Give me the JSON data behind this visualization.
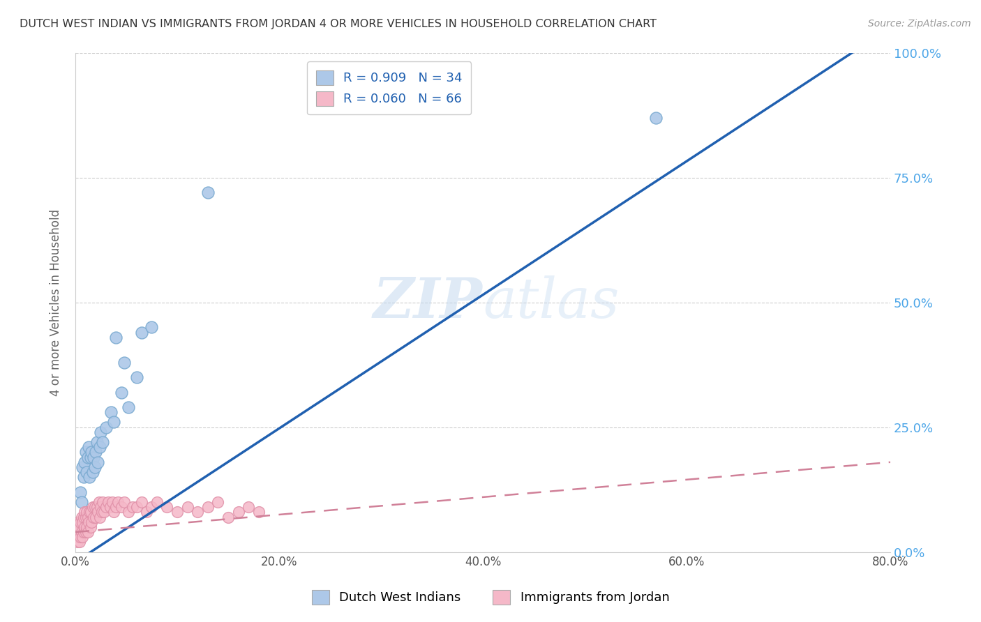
{
  "title": "DUTCH WEST INDIAN VS IMMIGRANTS FROM JORDAN 4 OR MORE VEHICLES IN HOUSEHOLD CORRELATION CHART",
  "source": "Source: ZipAtlas.com",
  "ylabel": "4 or more Vehicles in Household",
  "xlim": [
    0.0,
    0.8
  ],
  "ylim": [
    0.0,
    1.0
  ],
  "xtick_labels": [
    "0.0%",
    "",
    "",
    "",
    "20.0%",
    "",
    "",
    "",
    "40.0%",
    "",
    "",
    "",
    "60.0%",
    "",
    "",
    "",
    "80.0%"
  ],
  "xtick_vals": [
    0.0,
    0.05,
    0.1,
    0.15,
    0.2,
    0.25,
    0.3,
    0.35,
    0.4,
    0.45,
    0.5,
    0.55,
    0.6,
    0.65,
    0.7,
    0.75,
    0.8
  ],
  "xtick_major_labels": [
    "0.0%",
    "20.0%",
    "40.0%",
    "60.0%",
    "80.0%"
  ],
  "xtick_major_vals": [
    0.0,
    0.2,
    0.4,
    0.6,
    0.8
  ],
  "ytick_vals": [
    0.0,
    0.25,
    0.5,
    0.75,
    1.0
  ],
  "ytick_labels": [
    "0.0%",
    "25.0%",
    "50.0%",
    "75.0%",
    "100.0%"
  ],
  "legend1_label": "R = 0.909   N = 34",
  "legend2_label": "R = 0.060   N = 66",
  "legend1_color": "#adc8e8",
  "legend2_color": "#f5b8c8",
  "line1_color": "#2060b0",
  "line2_color": "#d08098",
  "scatter1_color": "#adc8e8",
  "scatter2_color": "#f5b8c8",
  "scatter1_edge": "#7aaad0",
  "scatter2_edge": "#e090a8",
  "watermark_color": "#d0e4f5",
  "background_color": "#ffffff",
  "grid_color": "#cccccc",
  "right_tick_color": "#4da6e8",
  "title_color": "#333333",
  "source_color": "#999999",
  "ylabel_color": "#666666",
  "legend_text_color": "#2060b0",
  "dutch_x": [
    0.003,
    0.005,
    0.006,
    0.007,
    0.008,
    0.009,
    0.01,
    0.011,
    0.012,
    0.013,
    0.014,
    0.015,
    0.016,
    0.017,
    0.018,
    0.019,
    0.02,
    0.021,
    0.022,
    0.024,
    0.025,
    0.027,
    0.03,
    0.035,
    0.038,
    0.04,
    0.045,
    0.048,
    0.052,
    0.06,
    0.065,
    0.075,
    0.13,
    0.57
  ],
  "dutch_y": [
    0.05,
    0.12,
    0.1,
    0.17,
    0.15,
    0.18,
    0.2,
    0.16,
    0.19,
    0.21,
    0.15,
    0.19,
    0.2,
    0.16,
    0.19,
    0.17,
    0.2,
    0.22,
    0.18,
    0.21,
    0.24,
    0.22,
    0.25,
    0.28,
    0.26,
    0.43,
    0.32,
    0.38,
    0.29,
    0.35,
    0.44,
    0.45,
    0.72,
    0.87
  ],
  "jordan_x": [
    0.001,
    0.002,
    0.002,
    0.003,
    0.003,
    0.004,
    0.004,
    0.005,
    0.005,
    0.006,
    0.006,
    0.007,
    0.007,
    0.008,
    0.008,
    0.009,
    0.009,
    0.01,
    0.01,
    0.011,
    0.011,
    0.012,
    0.012,
    0.013,
    0.014,
    0.015,
    0.015,
    0.016,
    0.017,
    0.018,
    0.019,
    0.02,
    0.021,
    0.022,
    0.023,
    0.024,
    0.025,
    0.026,
    0.027,
    0.028,
    0.03,
    0.032,
    0.034,
    0.036,
    0.038,
    0.04,
    0.042,
    0.045,
    0.048,
    0.052,
    0.056,
    0.06,
    0.065,
    0.07,
    0.075,
    0.08,
    0.09,
    0.1,
    0.11,
    0.12,
    0.13,
    0.14,
    0.15,
    0.16,
    0.17,
    0.18
  ],
  "jordan_y": [
    0.04,
    0.02,
    0.05,
    0.03,
    0.06,
    0.02,
    0.05,
    0.03,
    0.06,
    0.04,
    0.07,
    0.03,
    0.06,
    0.04,
    0.07,
    0.05,
    0.08,
    0.04,
    0.07,
    0.05,
    0.08,
    0.04,
    0.07,
    0.06,
    0.08,
    0.05,
    0.08,
    0.06,
    0.09,
    0.07,
    0.09,
    0.07,
    0.09,
    0.08,
    0.1,
    0.07,
    0.09,
    0.08,
    0.1,
    0.08,
    0.09,
    0.1,
    0.09,
    0.1,
    0.08,
    0.09,
    0.1,
    0.09,
    0.1,
    0.08,
    0.09,
    0.09,
    0.1,
    0.08,
    0.09,
    0.1,
    0.09,
    0.08,
    0.09,
    0.08,
    0.09,
    0.1,
    0.07,
    0.08,
    0.09,
    0.08
  ]
}
